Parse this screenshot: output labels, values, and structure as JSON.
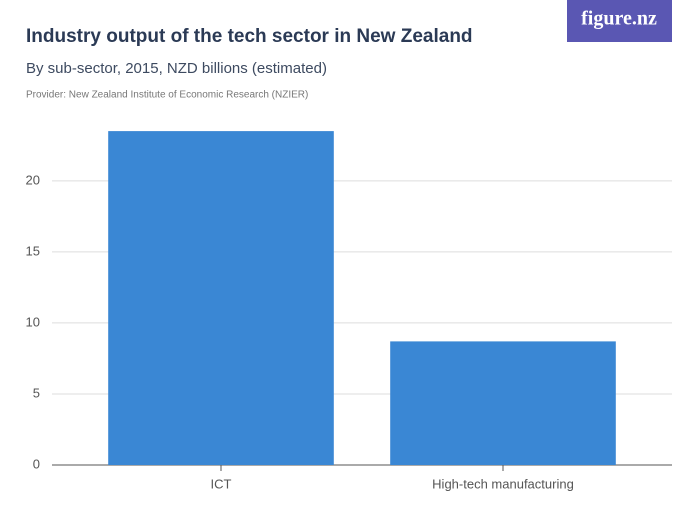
{
  "logo": "figure.nz",
  "chart_data": {
    "type": "bar",
    "title": "Industry output of the tech sector in New Zealand",
    "subtitle": "By sub-sector, 2015, NZD billions (estimated)",
    "source": "Provider: New Zealand Institute of Economic Research (NZIER)",
    "categories": [
      "ICT",
      "High-tech manufacturing"
    ],
    "values": [
      23.5,
      8.7
    ],
    "color": "#3a87d4",
    "ylim": [
      0,
      24
    ],
    "yticks": [
      0,
      5,
      10,
      15,
      20
    ],
    "grid": true
  }
}
